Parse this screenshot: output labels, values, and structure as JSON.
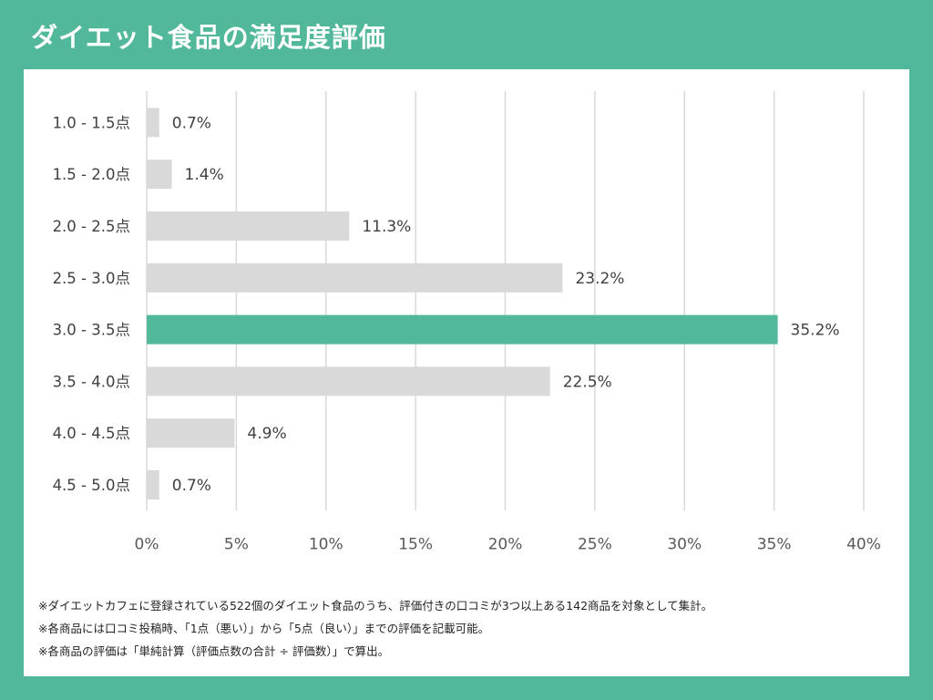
{
  "title": "ダイエット食品の満足度評価",
  "colors": {
    "background": "#52b89b",
    "highlight_bar": "#52b89b",
    "default_bar": "#d9d9d9",
    "grid": "#d9d9d9"
  },
  "chart_data": {
    "type": "bar",
    "orientation": "horizontal",
    "title": "ダイエット食品の満足度評価",
    "categories": [
      "1.0 - 1.5点",
      "1.5 - 2.0点",
      "2.0 - 2.5点",
      "2.5 - 3.0点",
      "3.0 - 3.5点",
      "3.5 - 4.0点",
      "4.0 - 4.5点",
      "4.5 - 5.0点"
    ],
    "values": [
      0.7,
      1.4,
      11.3,
      23.2,
      35.2,
      22.5,
      4.9,
      0.7
    ],
    "value_labels": [
      "0.7%",
      "1.4%",
      "11.3%",
      "23.2%",
      "35.2%",
      "22.5%",
      "4.9%",
      "0.7%"
    ],
    "highlight_index": 4,
    "xlim": [
      0,
      40
    ],
    "x_ticks": [
      0,
      5,
      10,
      15,
      20,
      25,
      30,
      35,
      40
    ],
    "x_tick_labels": [
      "0%",
      "5%",
      "10%",
      "15%",
      "20%",
      "25%",
      "30%",
      "35%",
      "40%"
    ],
    "xlabel": "",
    "ylabel": "",
    "grid": "vertical"
  },
  "notes": [
    "※ダイエットカフェに登録されている522個のダイエット食品のうち、評価付きの口コミが3つ以上ある142商品を対象として集計。",
    "※各商品には口コミ投稿時、「1点（悪い）」から「5点（良い）」までの評価を記載可能。",
    "※各商品の評価は「単純計算（評価点数の合計 ÷ 評価数）」で算出。"
  ]
}
